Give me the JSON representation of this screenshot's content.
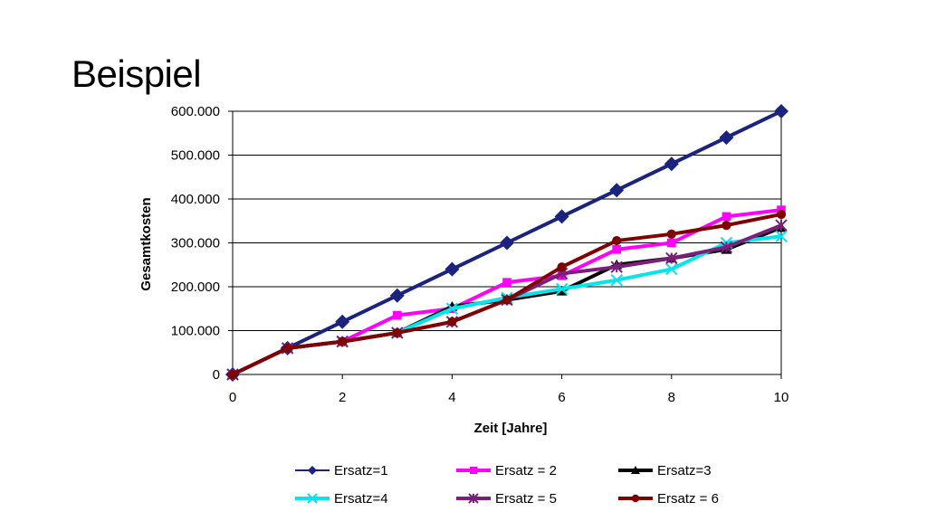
{
  "slide": {
    "title": "Beispiel"
  },
  "chart_data": {
    "type": "line",
    "xlabel": "Zeit [Jahre]",
    "ylabel": "Gesamtkosten",
    "xlim": [
      0,
      10
    ],
    "ylim": [
      0,
      600000
    ],
    "x_ticks": [
      "0",
      "2",
      "4",
      "6",
      "8",
      "10"
    ],
    "y_ticks": [
      "0",
      "100.000",
      "200.000",
      "300.000",
      "400.000",
      "500.000",
      "600.000"
    ],
    "grid": "horizontal",
    "legend_position": "bottom",
    "x": [
      0,
      1,
      2,
      3,
      4,
      5,
      6,
      7,
      8,
      9,
      10
    ],
    "series": [
      {
        "name": "Ersatz=1",
        "color": "#1a237e",
        "marker": "diamond",
        "values": [
          0,
          60000,
          120000,
          180000,
          240000,
          300000,
          360000,
          420000,
          480000,
          540000,
          600000
        ]
      },
      {
        "name": "Ersatz = 2",
        "color": "#ff00ff",
        "marker": "square",
        "values": [
          0,
          60000,
          75000,
          135000,
          150000,
          210000,
          225000,
          285000,
          300000,
          360000,
          375000
        ]
      },
      {
        "name": "Ersatz=3",
        "color": "#000000",
        "marker": "triangle",
        "values": [
          0,
          60000,
          75000,
          95000,
          155000,
          170000,
          190000,
          250000,
          265000,
          285000,
          335000
        ]
      },
      {
        "name": "Ersatz=4",
        "color": "#00e5ee",
        "marker": "x",
        "values": [
          0,
          60000,
          75000,
          95000,
          150000,
          175000,
          195000,
          215000,
          240000,
          300000,
          315000
        ]
      },
      {
        "name": "Ersatz = 5",
        "color": "#7b1f7b",
        "marker": "star",
        "values": [
          0,
          60000,
          75000,
          95000,
          120000,
          170000,
          230000,
          245000,
          265000,
          290000,
          340000
        ]
      },
      {
        "name": "Ersatz = 6",
        "color": "#7f0000",
        "marker": "circle",
        "values": [
          0,
          60000,
          75000,
          95000,
          120000,
          170000,
          245000,
          305000,
          320000,
          340000,
          365000
        ]
      }
    ]
  }
}
